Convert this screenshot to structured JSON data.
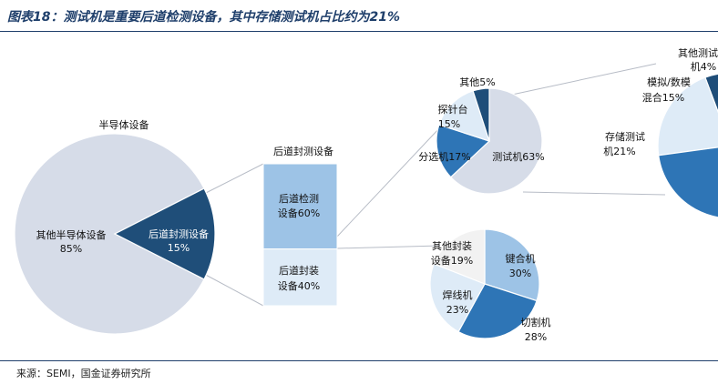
{
  "title": "图表18：测试机是重要后道检测设备，其中存储测试机占比约为21%",
  "source": "来源：SEMI，国金证券研究所",
  "chart_data": [
    {
      "type": "pie",
      "title": "半导体设备",
      "slices": [
        {
          "label": "其他半导体设备",
          "value": 85,
          "value_label": "85%",
          "color": "#d6dce8"
        },
        {
          "label": "后道封测设备",
          "value": 15,
          "value_label": "15%",
          "color": "#1f4e79"
        }
      ]
    },
    {
      "type": "bar",
      "title": "后道封测设备",
      "segments": [
        {
          "label": "后道检测设备",
          "value": 60,
          "value_label": "60%",
          "color": "#9dc3e6"
        },
        {
          "label": "后道封装设备",
          "value": 40,
          "value_label": "40%",
          "color": "#deebf7"
        }
      ]
    },
    {
      "type": "pie",
      "slices": [
        {
          "label": "测试机",
          "value": 63,
          "value_label": "63%",
          "color": "#d6dce8"
        },
        {
          "label": "分选机",
          "value": 17,
          "value_label": "17%",
          "color": "#2e75b6"
        },
        {
          "label": "探针台",
          "value": 15,
          "value_label": "15%",
          "color": "#deebf7"
        },
        {
          "label": "其他",
          "value": 5,
          "value_label": "5%",
          "color": "#1f4e79"
        }
      ]
    },
    {
      "type": "pie",
      "slices": [
        {
          "label": "存储测试机",
          "value": 21,
          "value_label": "21%",
          "color": "#2e75b6"
        },
        {
          "label": "模拟/数模混合",
          "value": 15,
          "value_label": "15%",
          "color": "#deebf7"
        },
        {
          "label": "其他测试机",
          "value": 4,
          "value_label": "4%",
          "color": "#1f4e79"
        }
      ]
    },
    {
      "type": "pie",
      "slices": [
        {
          "label": "键合机",
          "value": 30,
          "value_label": "30%",
          "color": "#9dc3e6"
        },
        {
          "label": "切割机",
          "value": 28,
          "value_label": "28%",
          "color": "#2e75b6"
        },
        {
          "label": "焊线机",
          "value": 23,
          "value_label": "23%",
          "color": "#deebf7"
        },
        {
          "label": "其他封装设备",
          "value": 19,
          "value_label": "19%",
          "color": "#f2f2f2"
        }
      ]
    }
  ]
}
